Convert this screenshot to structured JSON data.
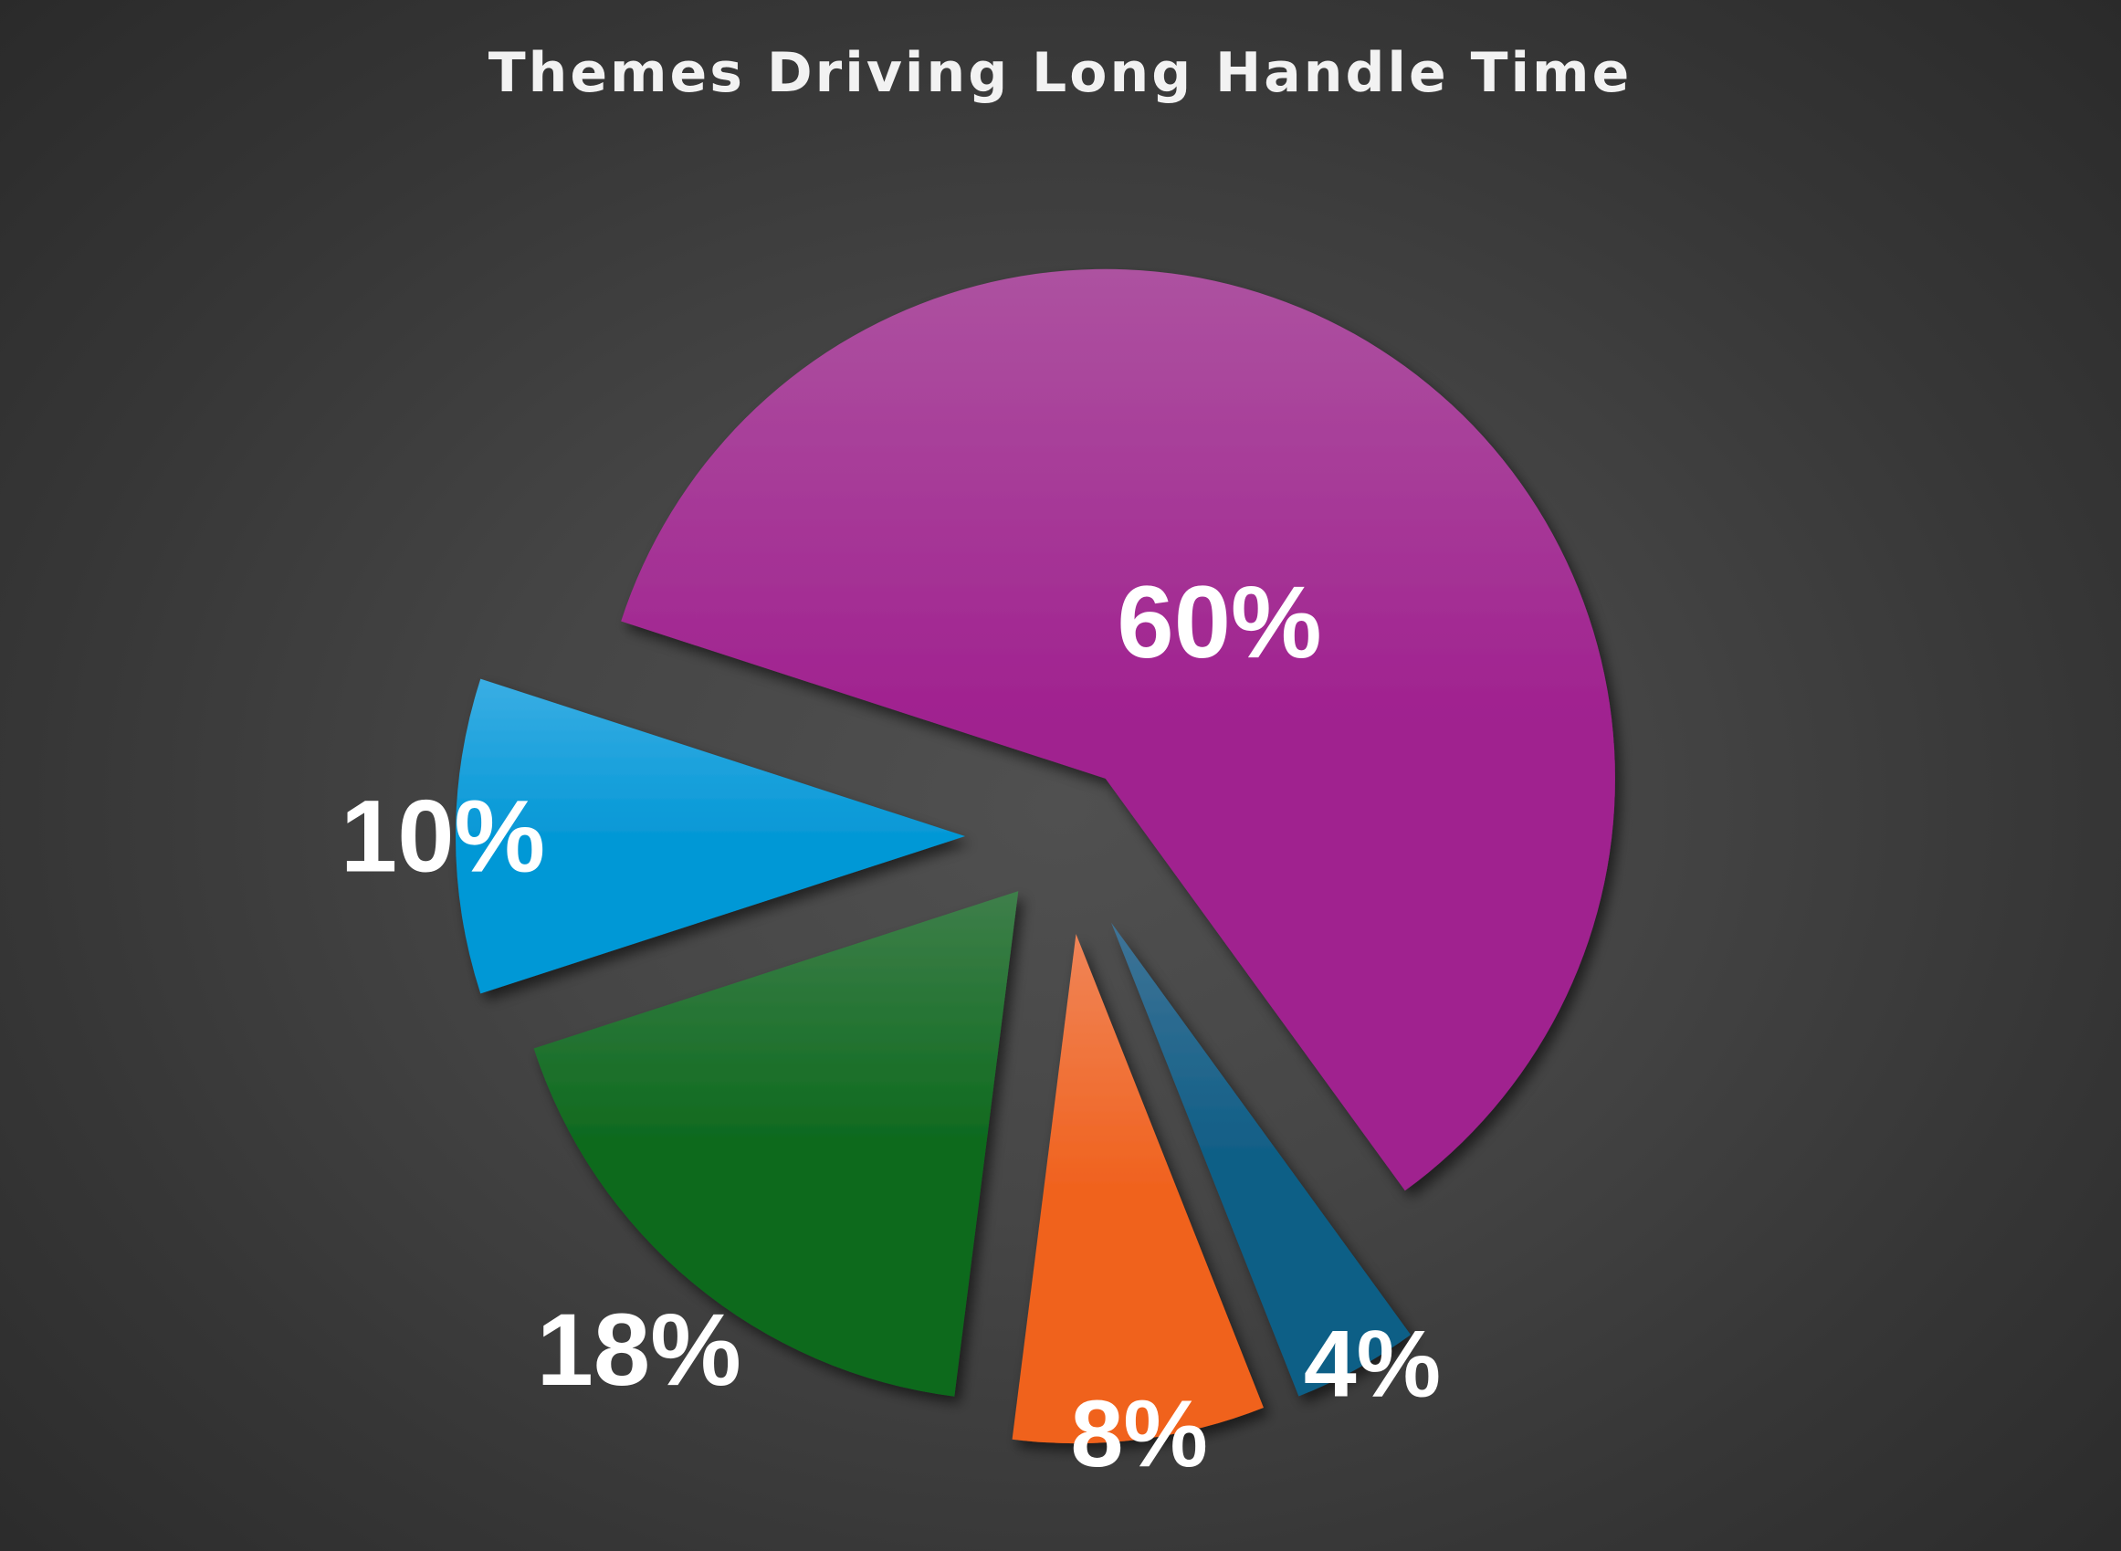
{
  "chart_data": {
    "type": "pie",
    "title": "Themes Driving Long Handle Time",
    "legend": "none",
    "slices": [
      {
        "label": "60%",
        "value": 60,
        "color": "#a0208f",
        "color_light": "#ad52a0"
      },
      {
        "label": "4%",
        "value": 4,
        "color": "#0f5e86",
        "color_light": "#3f7497"
      },
      {
        "label": "8%",
        "value": 8,
        "color": "#f0621e",
        "color_light": "#f08558"
      },
      {
        "label": "18%",
        "value": 18,
        "color": "#0e6a1e",
        "color_light": "#3e7f4a"
      },
      {
        "label": "10%",
        "value": 10,
        "color": "#0598d6",
        "color_light": "#3aaee4"
      }
    ]
  }
}
